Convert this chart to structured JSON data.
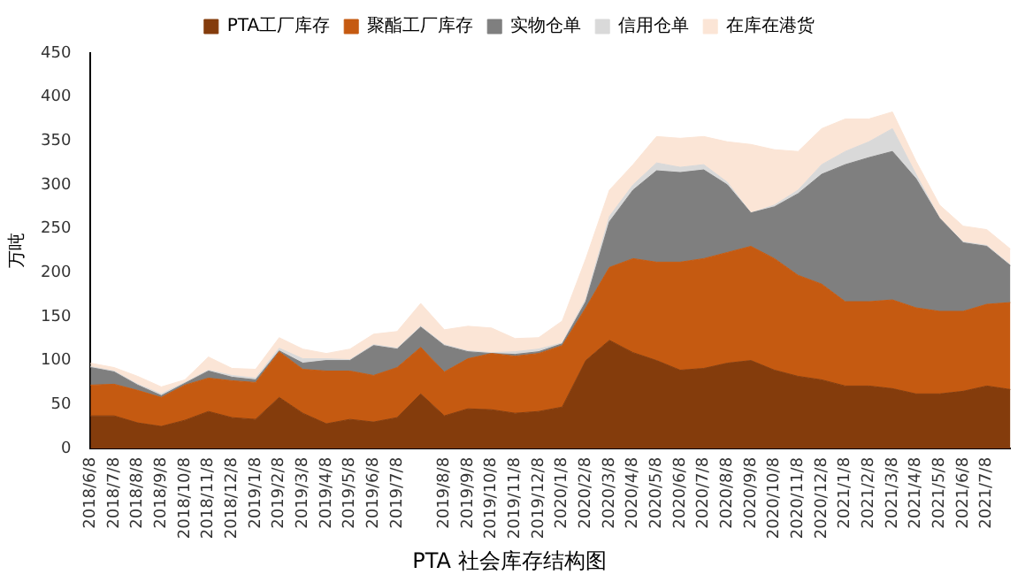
{
  "chart_data": {
    "type": "area",
    "title": "PTA 社会库存结构图",
    "ylabel": "万吨",
    "stacked": true,
    "legend": "top",
    "grid": false,
    "ylim": [
      0,
      450
    ],
    "yticks": [
      0,
      50,
      100,
      150,
      200,
      250,
      300,
      350,
      400,
      450
    ],
    "categories": [
      "2018/6/8",
      "2018/7/8",
      "2018/8/8",
      "2018/9/8",
      "2018/10/8",
      "2018/11/8",
      "2018/12/8",
      "2019/1/8",
      "2019/2/8",
      "2019/3/8",
      "2019/4/8",
      "2019/5/8",
      "2019/6/8",
      "2019/7/8",
      null,
      "2019/8/8",
      "2019/9/8",
      "2019/10/8",
      "2019/11/8",
      "2019/12/8",
      "2020/1/8",
      "2020/2/8",
      "2020/3/8",
      "2020/4/8",
      "2020/5/8",
      "2020/6/8",
      "2020/7/8",
      "2020/8/8",
      "2020/9/8",
      "2020/10/8",
      "2020/11/8",
      "2020/12/8",
      "2021/1/8",
      "2021/2/8",
      "2021/3/8",
      "2021/4/8",
      "2021/5/8",
      "2021/6/8",
      "2021/7/8",
      null
    ],
    "series": [
      {
        "name": "PTA工厂库存",
        "color": "#843c0c",
        "values": [
          37,
          37,
          29,
          25,
          32,
          42,
          35,
          33,
          58,
          40,
          28,
          33,
          30,
          35,
          62,
          37,
          45,
          44,
          40,
          42,
          47,
          100,
          123,
          109,
          100,
          89,
          91,
          97,
          100,
          89,
          82,
          78,
          71,
          71,
          68,
          62,
          62,
          65,
          71,
          67
        ]
      },
      {
        "name": "聚酯工厂库存",
        "color": "#c55a11",
        "values": [
          35,
          36,
          37,
          33,
          40,
          38,
          42,
          42,
          52,
          50,
          60,
          55,
          53,
          57,
          53,
          50,
          57,
          64,
          65,
          66,
          70,
          60,
          83,
          107,
          112,
          123,
          125,
          126,
          130,
          127,
          115,
          109,
          96,
          96,
          101,
          98,
          94,
          91,
          93,
          99
        ]
      },
      {
        "name": "实物仓单",
        "color": "#7f7f7f",
        "values": [
          20,
          14,
          6,
          2,
          2,
          8,
          4,
          3,
          1,
          7,
          12,
          12,
          34,
          21,
          23,
          30,
          8,
          0,
          2,
          2,
          2,
          7,
          52,
          78,
          104,
          102,
          101,
          77,
          38,
          59,
          93,
          125,
          156,
          164,
          169,
          147,
          106,
          78,
          66,
          42
        ]
      },
      {
        "name": "信用仓单",
        "color": "#d9d9d9",
        "values": [
          1,
          1,
          1,
          2,
          1,
          1,
          2,
          2,
          3,
          5,
          2,
          1,
          1,
          1,
          1,
          1,
          1,
          1,
          3,
          3,
          1,
          3,
          6,
          6,
          9,
          6,
          6,
          3,
          0,
          2,
          4,
          11,
          15,
          18,
          26,
          5,
          0,
          1,
          1,
          1
        ]
      },
      {
        "name": "在库在港货",
        "color": "#fbe5d6",
        "values": [
          4,
          4,
          9,
          8,
          3,
          15,
          8,
          10,
          12,
          11,
          6,
          12,
          12,
          19,
          26,
          17,
          28,
          28,
          15,
          13,
          25,
          46,
          30,
          23,
          30,
          33,
          32,
          46,
          78,
          63,
          44,
          41,
          37,
          26,
          19,
          15,
          15,
          18,
          18,
          18
        ]
      }
    ]
  }
}
